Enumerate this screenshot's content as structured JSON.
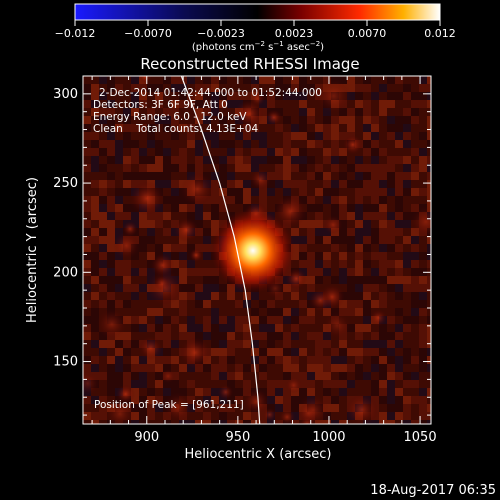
{
  "chart_data": {
    "type": "heatmap",
    "title": "Reconstructed RHESSI Image",
    "xlabel": "Heliocentric X (arcsec)",
    "ylabel": "Heliocentric Y (arcsec)",
    "xlim": [
      865,
      1056
    ],
    "ylim": [
      115,
      310
    ],
    "x_ticks": [
      "900",
      "950",
      "1000",
      "1050"
    ],
    "y_ticks": [
      "150",
      "200",
      "250",
      "300"
    ],
    "colorbar": {
      "ticks": [
        "−0.012",
        "−0.0070",
        "−0.0023",
        "0.0023",
        "0.0070",
        "0.012"
      ],
      "label_main": "(photons cm",
      "label_sup1": "−2",
      "label_mid1": " s",
      "label_sup2": "−1",
      "label_mid2": " asec",
      "label_sup3": "−2",
      "label_end": ")",
      "colors": [
        "#1a1aff",
        "#000000",
        "#8b0000",
        "#ff3300",
        "#ffaa00",
        "#ffffff"
      ]
    },
    "annotations": [
      "2-Dec-2014 01:42:44.000 to 01:52:44.000",
      "Detectors: 3F 6F 9F, Att 0",
      "Energy Range: 6.0 - 12.0 keV",
      "Clean    Total counts: 4.13E+04"
    ],
    "peak_label": "Position of Peak = [961,211]",
    "peak": [
      961,
      211
    ],
    "limb_points": [
      [
        919,
        310
      ],
      [
        930,
        280
      ],
      [
        940,
        250
      ],
      [
        948,
        220
      ],
      [
        954,
        190
      ],
      [
        958,
        160
      ],
      [
        961,
        130
      ],
      [
        962,
        115
      ]
    ],
    "footer_date": "18-Aug-2017 06:35"
  }
}
